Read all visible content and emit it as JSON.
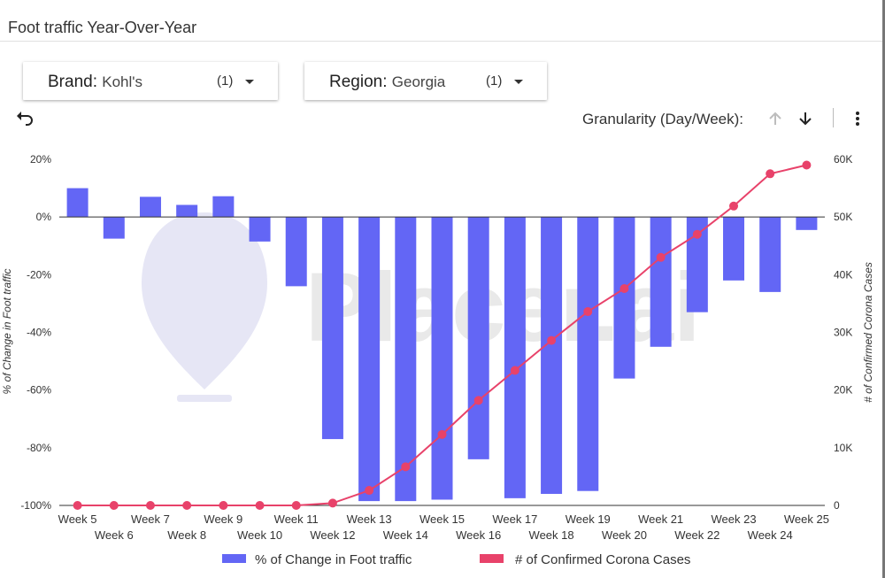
{
  "page": {
    "title": "Foot traffic Year-Over-Year"
  },
  "filters": [
    {
      "name": "Brand",
      "value": "Kohl's",
      "count": "(1)"
    },
    {
      "name": "Region",
      "value": "Georgia",
      "count": "(1)"
    }
  ],
  "toolbar": {
    "undo_icon": "undo-icon",
    "granularity_label": "Granularity (Day/Week):",
    "up_icon": "arrow-up-icon",
    "down_icon": "arrow-down-icon",
    "more_icon": "more-vert-icon"
  },
  "watermark": {
    "text": "Placer.ai"
  },
  "colors": {
    "bar": "#6366f5",
    "line": "#e8426a",
    "watermark": "#e6e6f5"
  },
  "chart_data": {
    "type": "bar",
    "categories": [
      "Week 5",
      "Week 6",
      "Week 7",
      "Week 8",
      "Week 9",
      "Week 10",
      "Week 11",
      "Week 12",
      "Week 13",
      "Week 14",
      "Week 15",
      "Week 16",
      "Week 17",
      "Week 18",
      "Week 19",
      "Week 20",
      "Week 21",
      "Week 22",
      "Week 23",
      "Week 24",
      "Week 25"
    ],
    "series": [
      {
        "name": "% of Change in Foot traffic",
        "type": "bar",
        "axis": "left",
        "values": [
          10,
          -7.5,
          7,
          4.2,
          7.2,
          -8.5,
          -24,
          -77,
          -98.5,
          -98.5,
          -98,
          -84,
          -97.5,
          -96,
          -95,
          -56,
          -45,
          -33,
          -22,
          -26,
          -4.5
        ]
      },
      {
        "name": "# of Confirmed Corona Cases",
        "type": "line",
        "axis": "right",
        "values": [
          0,
          0,
          0,
          0,
          0,
          0,
          0,
          400,
          2600,
          6700,
          12300,
          18200,
          23400,
          28600,
          33600,
          37600,
          43000,
          47000,
          51900,
          57500,
          59000
        ]
      }
    ],
    "ylabel": "% of Change in Foot traffic",
    "ylabel_right": "# of Confirmed Corona Cases",
    "ylim": [
      -100,
      20
    ],
    "ylim_right": [
      0,
      60000
    ],
    "yticks": [
      "20%",
      "0%",
      "-20%",
      "-40%",
      "-60%",
      "-80%",
      "-100%"
    ],
    "yticks_right": [
      "60K",
      "50K",
      "40K",
      "30K",
      "20K",
      "10K",
      "0"
    ],
    "legend_position": "bottom"
  }
}
